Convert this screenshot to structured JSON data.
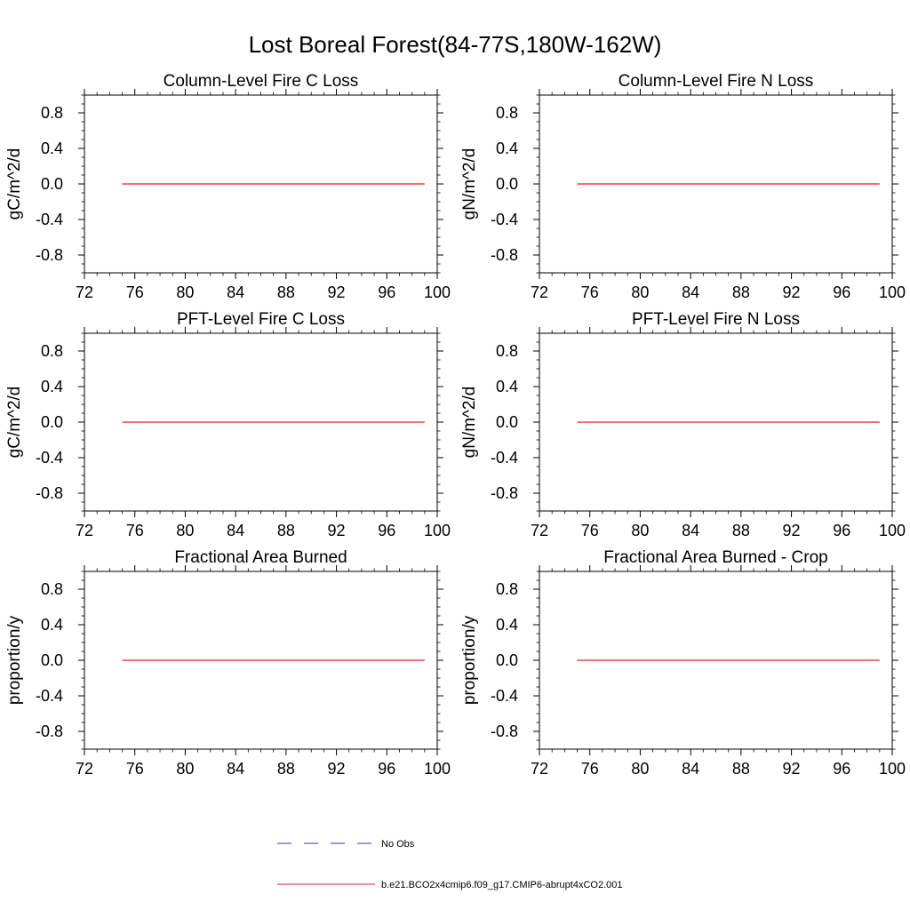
{
  "chart_data": {
    "type": "line",
    "title": "Lost Boreal Forest(84-77S,180W-162W)",
    "xlim": [
      72,
      100
    ],
    "ylim": [
      -1.0,
      1.0
    ],
    "xticks": [
      72,
      76,
      80,
      84,
      88,
      92,
      96,
      100
    ],
    "yticks": [
      0.8,
      0.4,
      0.0,
      -0.4,
      -0.8
    ],
    "xtick_labels": [
      "72",
      "76",
      "80",
      "84",
      "88",
      "92",
      "96",
      "100"
    ],
    "ytick_labels": [
      "0.8",
      "0.4",
      "0.0",
      "-0.4",
      "-0.8"
    ],
    "grid": false,
    "legend_placement": "bottom-center",
    "legend": [
      {
        "label": "No Obs",
        "color": "#3a3aa0",
        "style": "dashed"
      },
      {
        "label": "b.e21.BCO2x4cmip6.f09_g17.CMIP6-abrupt4xCO2.001",
        "color": "#e02020",
        "style": "solid"
      }
    ],
    "panels": [
      {
        "title": "Column-Level Fire C Loss",
        "ylabel": "gC/m^2/d",
        "series": [
          {
            "name": "b.e21.BCO2x4cmip6.f09_g17.CMIP6-abrupt4xCO2.001",
            "x": [
              75,
              99
            ],
            "values": [
              0.0,
              0.0
            ]
          }
        ]
      },
      {
        "title": "Column-Level Fire N Loss",
        "ylabel": "gN/m^2/d",
        "series": [
          {
            "name": "b.e21.BCO2x4cmip6.f09_g17.CMIP6-abrupt4xCO2.001",
            "x": [
              75,
              99
            ],
            "values": [
              0.0,
              0.0
            ]
          }
        ]
      },
      {
        "title": "PFT-Level Fire C Loss",
        "ylabel": "gC/m^2/d",
        "series": [
          {
            "name": "b.e21.BCO2x4cmip6.f09_g17.CMIP6-abrupt4xCO2.001",
            "x": [
              75,
              99
            ],
            "values": [
              0.0,
              0.0
            ]
          }
        ]
      },
      {
        "title": "PFT-Level Fire N Loss",
        "ylabel": "gN/m^2/d",
        "series": [
          {
            "name": "b.e21.BCO2x4cmip6.f09_g17.CMIP6-abrupt4xCO2.001",
            "x": [
              75,
              99
            ],
            "values": [
              0.0,
              0.0
            ]
          }
        ]
      },
      {
        "title": "Fractional Area Burned",
        "ylabel": "proportion/y",
        "series": [
          {
            "name": "b.e21.BCO2x4cmip6.f09_g17.CMIP6-abrupt4xCO2.001",
            "x": [
              75,
              99
            ],
            "values": [
              0.0,
              0.0
            ]
          }
        ]
      },
      {
        "title": "Fractional Area Burned - Crop",
        "ylabel": "proportion/y",
        "series": [
          {
            "name": "b.e21.BCO2x4cmip6.f09_g17.CMIP6-abrupt4xCO2.001",
            "x": [
              75,
              99
            ],
            "values": [
              0.0,
              0.0
            ]
          }
        ]
      }
    ]
  }
}
